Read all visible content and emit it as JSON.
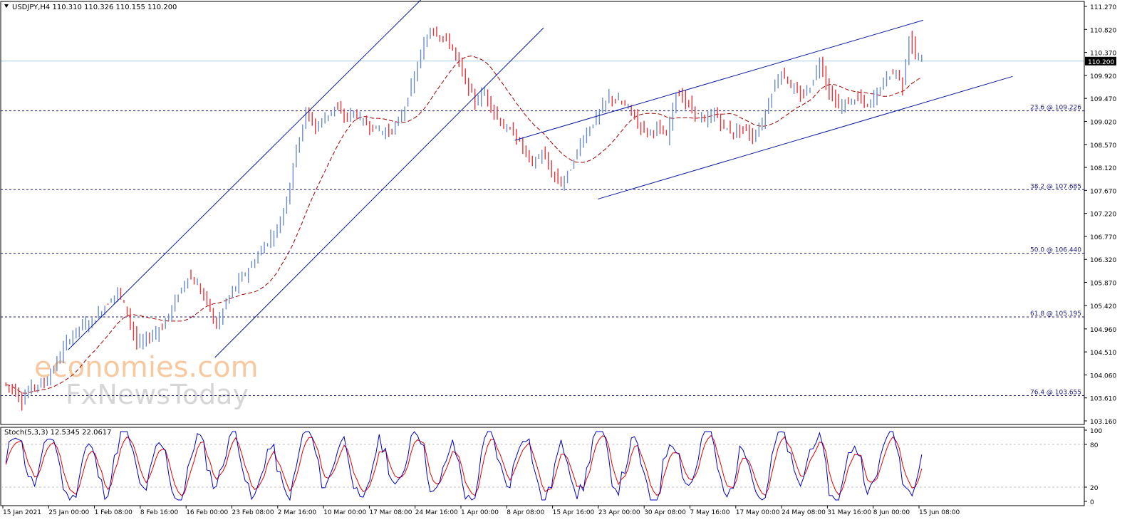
{
  "symbol_header": "USDJPY,H4  110.310 110.326 110.155 110.200",
  "watermark": {
    "brand": "economies.com",
    "sub": "FxNewsToday"
  },
  "chart_data": [
    {
      "type": "candlestick",
      "title": "USDJPY,H4",
      "ohlc": {
        "open": 110.31,
        "high": 110.326,
        "low": 110.155,
        "close": 110.2
      },
      "current_price_label": "110.200",
      "ylim": [
        103.16,
        111.27
      ],
      "y_ticks": [
        "111.270",
        "110.820",
        "110.370",
        "109.920",
        "109.470",
        "109.020",
        "108.570",
        "108.120",
        "107.670",
        "107.220",
        "106.770",
        "106.320",
        "105.870",
        "105.420",
        "104.960",
        "104.510",
        "104.060",
        "103.610",
        "103.160"
      ],
      "x_ticks": [
        "15 Jan 2021",
        "25 Jan 00:00",
        "1 Feb 08:00",
        "8 Feb 16:00",
        "16 Feb 00:00",
        "23 Feb 08:00",
        "2 Mar 16:00",
        "10 Mar 00:00",
        "17 Mar 08:00",
        "24 Mar 16:00",
        "1 Apr 00:00",
        "8 Apr 08:00",
        "15 Apr 16:00",
        "23 Apr 00:00",
        "30 Apr 08:00",
        "7 May 16:00",
        "17 May 00:00",
        "24 May 08:00",
        "31 May 16:00",
        "8 Jun 00:00",
        "15 Jun 08:00"
      ],
      "fibonacci_levels": [
        {
          "label": "23.6 @ 109.226",
          "price": 109.226
        },
        {
          "label": "38.2 @ 107.685",
          "price": 107.685
        },
        {
          "label": "50.0 @ 106.440",
          "price": 106.44
        },
        {
          "label": "61.8 @ 105.195",
          "price": 105.195
        },
        {
          "label": "76.4 @ 103.655",
          "price": 103.655
        }
      ],
      "price_path": [
        {
          "t": 0,
          "p": 103.9
        },
        {
          "t": 3,
          "p": 103.8
        },
        {
          "t": 6,
          "p": 103.55
        },
        {
          "t": 9,
          "p": 103.85
        },
        {
          "t": 13,
          "p": 103.9
        },
        {
          "t": 16,
          "p": 104.2
        },
        {
          "t": 20,
          "p": 104.7
        },
        {
          "t": 24,
          "p": 105.0
        },
        {
          "t": 28,
          "p": 105.1
        },
        {
          "t": 32,
          "p": 105.4
        },
        {
          "t": 36,
          "p": 105.7
        },
        {
          "t": 39,
          "p": 105.3
        },
        {
          "t": 42,
          "p": 104.65
        },
        {
          "t": 46,
          "p": 104.8
        },
        {
          "t": 50,
          "p": 105.0
        },
        {
          "t": 54,
          "p": 105.5
        },
        {
          "t": 58,
          "p": 106.0
        },
        {
          "t": 61,
          "p": 105.8
        },
        {
          "t": 64,
          "p": 105.5
        },
        {
          "t": 67,
          "p": 105.0
        },
        {
          "t": 70,
          "p": 105.5
        },
        {
          "t": 74,
          "p": 105.9
        },
        {
          "t": 78,
          "p": 106.2
        },
        {
          "t": 82,
          "p": 106.6
        },
        {
          "t": 86,
          "p": 106.9
        },
        {
          "t": 89,
          "p": 107.5
        },
        {
          "t": 92,
          "p": 108.5
        },
        {
          "t": 95,
          "p": 109.2
        },
        {
          "t": 98,
          "p": 108.9
        },
        {
          "t": 101,
          "p": 109.1
        },
        {
          "t": 104,
          "p": 109.3
        },
        {
          "t": 107,
          "p": 109.1
        },
        {
          "t": 110,
          "p": 109.2
        },
        {
          "t": 113,
          "p": 109.0
        },
        {
          "t": 116,
          "p": 108.9
        },
        {
          "t": 120,
          "p": 108.8
        },
        {
          "t": 123,
          "p": 108.9
        },
        {
          "t": 126,
          "p": 109.3
        },
        {
          "t": 129,
          "p": 109.9
        },
        {
          "t": 132,
          "p": 110.5
        },
        {
          "t": 134,
          "p": 110.85
        },
        {
          "t": 137,
          "p": 110.7
        },
        {
          "t": 140,
          "p": 110.55
        },
        {
          "t": 142,
          "p": 110.3
        },
        {
          "t": 145,
          "p": 109.8
        },
        {
          "t": 148,
          "p": 109.4
        },
        {
          "t": 151,
          "p": 109.6
        },
        {
          "t": 154,
          "p": 109.2
        },
        {
          "t": 157,
          "p": 108.9
        },
        {
          "t": 160,
          "p": 108.8
        },
        {
          "t": 163,
          "p": 108.5
        },
        {
          "t": 166,
          "p": 108.2
        },
        {
          "t": 169,
          "p": 108.4
        },
        {
          "t": 172,
          "p": 108.0
        },
        {
          "t": 175,
          "p": 107.8
        },
        {
          "t": 178,
          "p": 108.1
        },
        {
          "t": 181,
          "p": 108.6
        },
        {
          "t": 184,
          "p": 108.9
        },
        {
          "t": 187,
          "p": 109.2
        },
        {
          "t": 190,
          "p": 109.5
        },
        {
          "t": 193,
          "p": 109.4
        },
        {
          "t": 196,
          "p": 109.3
        },
        {
          "t": 199,
          "p": 109.0
        },
        {
          "t": 202,
          "p": 108.8
        },
        {
          "t": 205,
          "p": 108.9
        },
        {
          "t": 208,
          "p": 108.7
        },
        {
          "t": 211,
          "p": 109.6
        },
        {
          "t": 214,
          "p": 109.4
        },
        {
          "t": 217,
          "p": 109.2
        },
        {
          "t": 220,
          "p": 109.0
        },
        {
          "t": 223,
          "p": 109.2
        },
        {
          "t": 226,
          "p": 108.9
        },
        {
          "t": 229,
          "p": 108.8
        },
        {
          "t": 232,
          "p": 108.9
        },
        {
          "t": 235,
          "p": 108.7
        },
        {
          "t": 238,
          "p": 109.0
        },
        {
          "t": 241,
          "p": 109.6
        },
        {
          "t": 244,
          "p": 110.0
        },
        {
          "t": 247,
          "p": 109.7
        },
        {
          "t": 250,
          "p": 109.5
        },
        {
          "t": 253,
          "p": 109.7
        },
        {
          "t": 256,
          "p": 110.2
        },
        {
          "t": 259,
          "p": 109.6
        },
        {
          "t": 262,
          "p": 109.3
        },
        {
          "t": 265,
          "p": 109.4
        },
        {
          "t": 268,
          "p": 109.5
        },
        {
          "t": 271,
          "p": 109.3
        },
        {
          "t": 274,
          "p": 109.6
        },
        {
          "t": 277,
          "p": 109.9
        },
        {
          "t": 280,
          "p": 110.0
        },
        {
          "t": 282,
          "p": 109.7
        },
        {
          "t": 284,
          "p": 110.7
        },
        {
          "t": 286,
          "p": 110.3
        },
        {
          "t": 288,
          "p": 110.2
        }
      ]
    },
    {
      "type": "line",
      "title": "Stoch(5,3,3) 12.5345 22.0617",
      "series": [
        {
          "name": "%K",
          "color": "#0000c0"
        },
        {
          "name": "%D",
          "color": "#e00000"
        }
      ],
      "last_values": {
        "k": 12.5345,
        "d": 22.0617
      },
      "ylim": [
        0,
        100
      ],
      "y_ticks": [
        "100",
        "80",
        "20",
        "0"
      ],
      "levels": [
        20,
        80
      ]
    }
  ],
  "colors": {
    "up_candle": "#6b8cc8",
    "down_candle": "#e8333a",
    "channel": "#0a1a9c",
    "ma": "#a00000",
    "fib": "#1a1a7a",
    "price_line": "#a8cce6",
    "stoch_k": "#0000c0",
    "stoch_d": "#e00000"
  }
}
